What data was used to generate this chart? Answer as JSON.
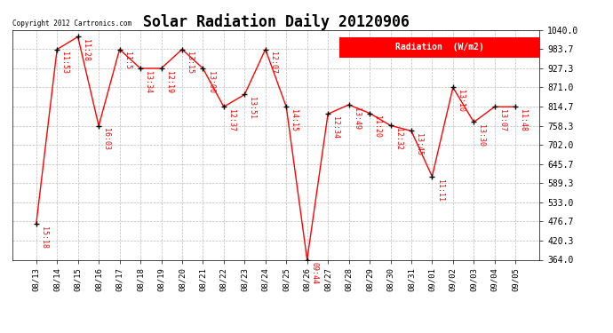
{
  "title": "Solar Radiation Daily 20120906",
  "copyright": "Copyright 2012 Cartronics.com",
  "legend_label": "Radiation  (W/m2)",
  "dates": [
    "08/13",
    "08/14",
    "08/15",
    "08/16",
    "08/17",
    "08/18",
    "08/19",
    "08/20",
    "08/21",
    "08/22",
    "08/23",
    "08/24",
    "08/25",
    "08/26",
    "08/27",
    "08/28",
    "08/29",
    "08/30",
    "08/31",
    "09/01",
    "09/02",
    "09/03",
    "09/04",
    "09/05"
  ],
  "values": [
    470,
    983,
    1020,
    758,
    983,
    927,
    927,
    983,
    927,
    814,
    850,
    983,
    814,
    364,
    793,
    820,
    795,
    759,
    743,
    609,
    871,
    769,
    814,
    814
  ],
  "time_labels": [
    "15:18",
    "11:53",
    "11:28",
    "16:03",
    "11:5",
    "13:34",
    "12:19",
    "13:15",
    "13:00",
    "12:37",
    "13:51",
    "12:07",
    "14:15",
    "09:44",
    "12:34",
    "13:49",
    "11:20",
    "12:32",
    "13:45",
    "11:11",
    "13:10",
    "13:30",
    "13:07",
    "11:48"
  ],
  "ylim": [
    364.0,
    1040.0
  ],
  "yticks": [
    364.0,
    420.3,
    476.7,
    533.0,
    589.3,
    645.7,
    702.0,
    758.3,
    814.7,
    871.0,
    927.3,
    983.7,
    1040.0
  ],
  "line_color": "red",
  "marker_color": "black",
  "bg_color": "white",
  "grid_color": "#bbbbbb",
  "title_fontsize": 12,
  "time_label_color": "red",
  "legend_bg": "red",
  "legend_text_color": "white"
}
